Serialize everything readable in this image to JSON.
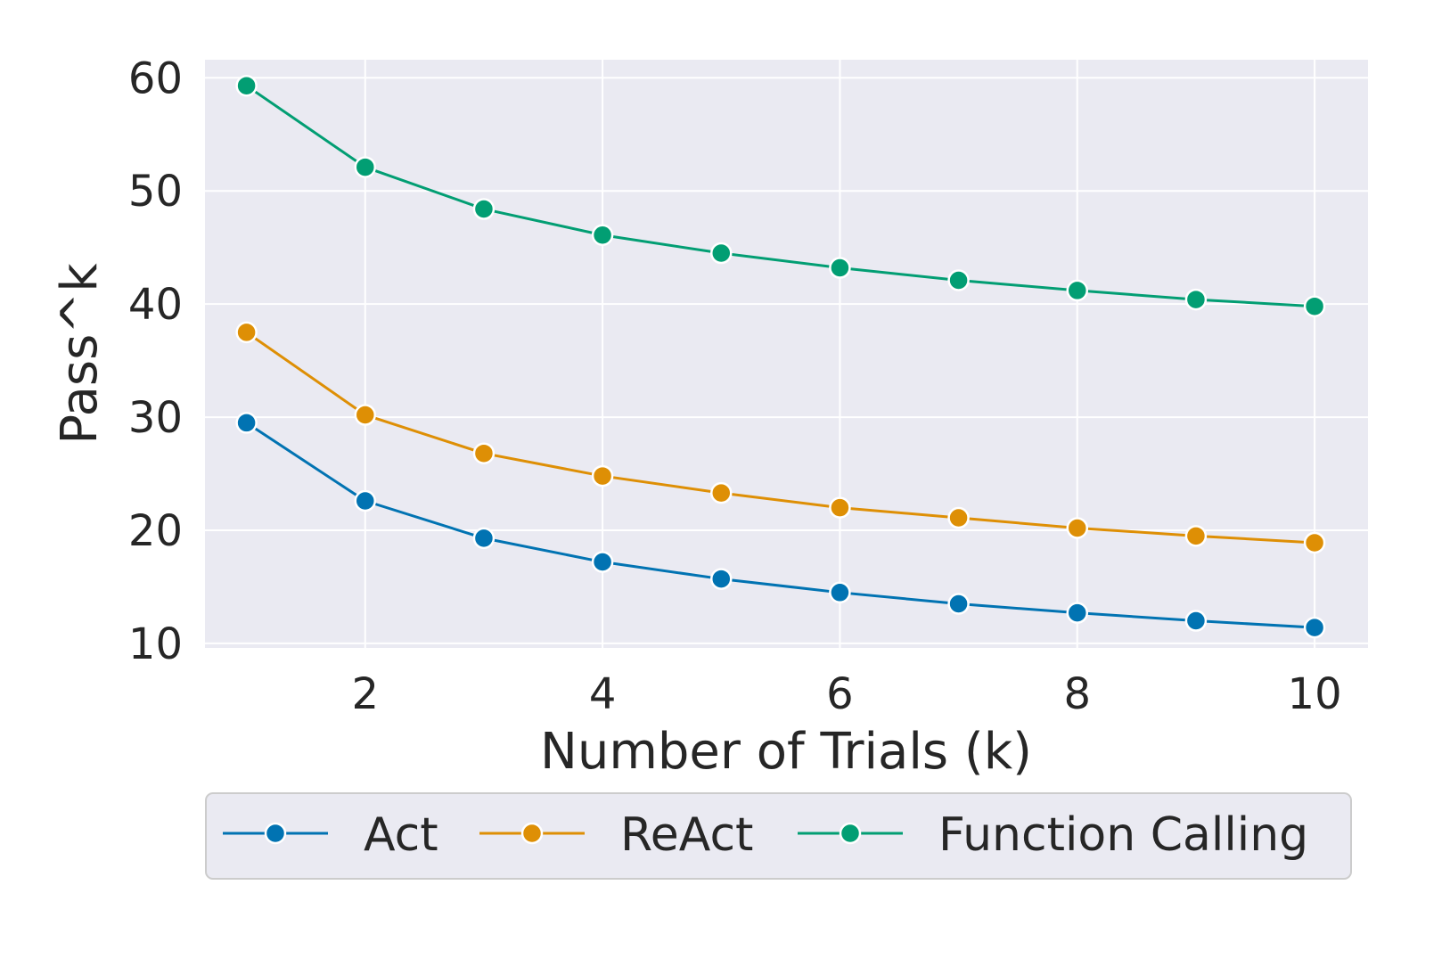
{
  "chart_data": {
    "type": "line",
    "xlabel": "Number of Trials (k)",
    "ylabel": "Pass^k",
    "x": [
      1,
      2,
      3,
      4,
      5,
      6,
      7,
      8,
      9,
      10
    ],
    "xlim": [
      0.65,
      10.45
    ],
    "ylim": [
      9.6,
      61.6
    ],
    "xticks": [
      2,
      4,
      6,
      8,
      10
    ],
    "yticks": [
      10,
      20,
      30,
      40,
      50,
      60
    ],
    "grid": true,
    "legend_position": "bottom",
    "series": [
      {
        "name": "Act",
        "color": "#0173b2",
        "values": [
          29.5,
          22.6,
          19.3,
          17.2,
          15.7,
          14.5,
          13.5,
          12.7,
          12.0,
          11.4
        ]
      },
      {
        "name": "ReAct",
        "color": "#de8f05",
        "values": [
          37.5,
          30.2,
          26.8,
          24.8,
          23.3,
          22.0,
          21.1,
          20.2,
          19.5,
          18.9
        ]
      },
      {
        "name": "Function Calling",
        "color": "#029e73",
        "values": [
          59.3,
          52.1,
          48.4,
          46.1,
          44.5,
          43.2,
          42.1,
          41.2,
          40.4,
          39.8
        ]
      }
    ]
  }
}
